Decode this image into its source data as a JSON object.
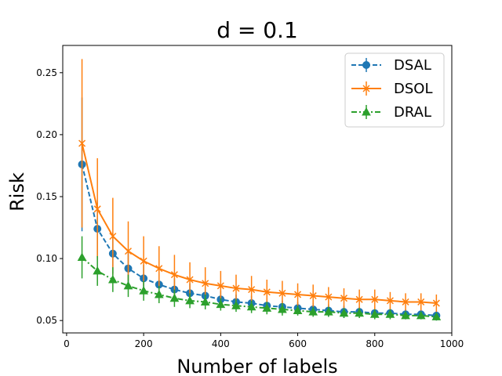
{
  "chart_data": {
    "type": "line",
    "title": "d = 0.1",
    "xlabel": "Number of labels",
    "ylabel": "Risk",
    "xlim": [
      -10,
      1000
    ],
    "ylim": [
      0.04,
      0.272
    ],
    "xticks": [
      0,
      200,
      400,
      600,
      800,
      1000
    ],
    "yticks": [
      0.05,
      0.1,
      0.15,
      0.2,
      0.25
    ],
    "xtick_labels": [
      "0",
      "200",
      "400",
      "600",
      "800",
      "1000"
    ],
    "ytick_labels": [
      "0.05",
      "0.10",
      "0.15",
      "0.20",
      "0.25"
    ],
    "legend_position": "top-right",
    "x": [
      40,
      80,
      120,
      160,
      200,
      240,
      280,
      320,
      360,
      400,
      440,
      480,
      520,
      560,
      600,
      640,
      680,
      720,
      760,
      800,
      840,
      880,
      920,
      960
    ],
    "series": [
      {
        "name": "DSAL",
        "color": "#1f77b4",
        "marker": "circle",
        "linestyle": "dashed",
        "values": [
          0.176,
          0.124,
          0.104,
          0.092,
          0.084,
          0.079,
          0.075,
          0.072,
          0.07,
          0.067,
          0.065,
          0.064,
          0.062,
          0.061,
          0.06,
          0.059,
          0.058,
          0.057,
          0.057,
          0.056,
          0.056,
          0.055,
          0.055,
          0.054
        ],
        "errors": [
          0.054,
          0.023,
          0.016,
          0.013,
          0.011,
          0.01,
          0.009,
          0.008,
          0.007,
          0.007,
          0.006,
          0.006,
          0.006,
          0.005,
          0.005,
          0.005,
          0.005,
          0.005,
          0.004,
          0.004,
          0.004,
          0.004,
          0.004,
          0.004
        ]
      },
      {
        "name": "DSOL",
        "color": "#ff7f0e",
        "marker": "x",
        "linestyle": "solid",
        "values": [
          0.193,
          0.14,
          0.118,
          0.106,
          0.098,
          0.092,
          0.087,
          0.083,
          0.08,
          0.078,
          0.076,
          0.075,
          0.073,
          0.072,
          0.071,
          0.07,
          0.069,
          0.068,
          0.067,
          0.067,
          0.066,
          0.065,
          0.065,
          0.064
        ],
        "errors": [
          0.068,
          0.041,
          0.031,
          0.024,
          0.02,
          0.018,
          0.016,
          0.014,
          0.013,
          0.012,
          0.011,
          0.011,
          0.01,
          0.01,
          0.009,
          0.009,
          0.008,
          0.008,
          0.008,
          0.008,
          0.007,
          0.007,
          0.007,
          0.007
        ]
      },
      {
        "name": "DRAL",
        "color": "#2ca02c",
        "marker": "triangle",
        "linestyle": "dashdot",
        "values": [
          0.101,
          0.09,
          0.083,
          0.078,
          0.074,
          0.071,
          0.068,
          0.066,
          0.065,
          0.063,
          0.062,
          0.061,
          0.06,
          0.059,
          0.058,
          0.057,
          0.057,
          0.056,
          0.056,
          0.055,
          0.055,
          0.054,
          0.054,
          0.053
        ],
        "errors": [
          0.017,
          0.012,
          0.01,
          0.009,
          0.008,
          0.007,
          0.007,
          0.006,
          0.006,
          0.005,
          0.005,
          0.005,
          0.005,
          0.005,
          0.004,
          0.004,
          0.004,
          0.004,
          0.004,
          0.004,
          0.004,
          0.003,
          0.003,
          0.003
        ]
      }
    ]
  }
}
